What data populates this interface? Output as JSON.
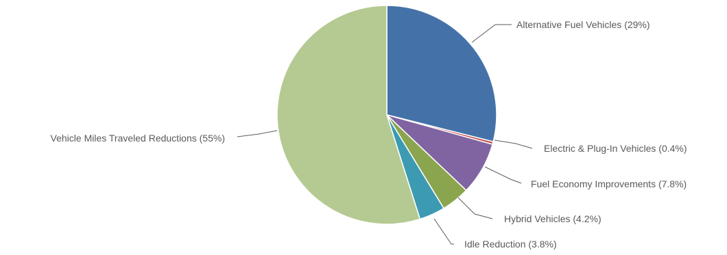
{
  "chart_data": {
    "type": "pie",
    "title": "",
    "start_angle_deg": 0,
    "direction": "clockwise",
    "slices": [
      {
        "label": "Alternative Fuel Vehicles (29%)",
        "value": 29.0,
        "color": "#4472A8"
      },
      {
        "label": "Electric & Plug-In Vehicles (0.4%)",
        "value": 0.4,
        "color": "#C0504D"
      },
      {
        "label": "Fuel Economy Improvements (7.8%)",
        "value": 7.8,
        "color": "#8064A2"
      },
      {
        "label": "Hybrid Vehicles (4.2%)",
        "value": 4.2,
        "color": "#8BA54E"
      },
      {
        "label": "Idle Reduction (3.8%)",
        "value": 3.8,
        "color": "#3C9AB2"
      },
      {
        "label": "Vehicle Miles Traveled Reductions (55%)",
        "value": 55.0,
        "color": "#B5CA92"
      }
    ],
    "slice_border_color": "#ffffff",
    "leader_line_color": "#595959"
  }
}
